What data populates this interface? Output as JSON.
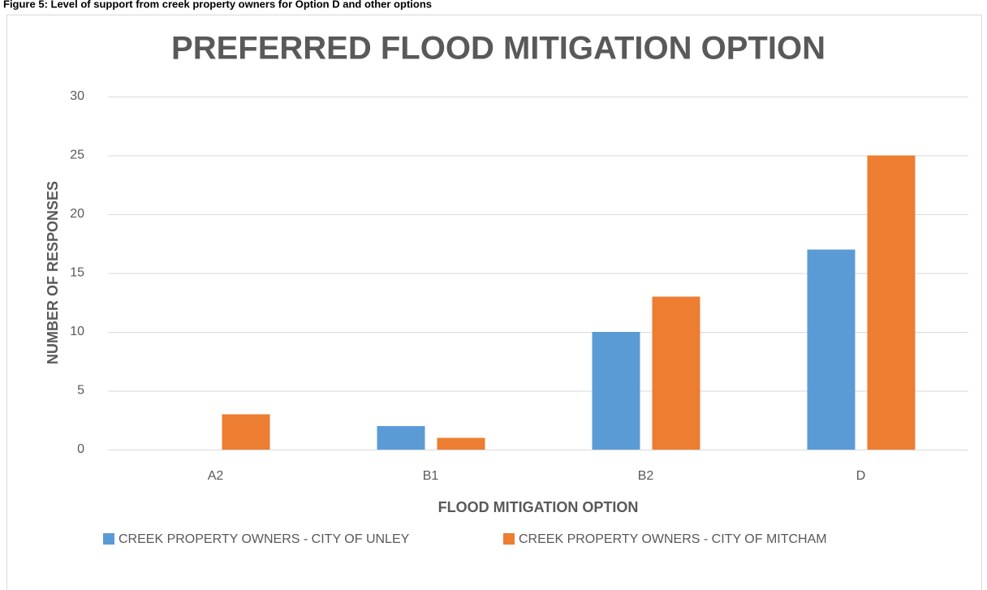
{
  "caption": "Figure 5: Level of support from creek property owners for Option D and other options",
  "chart_data": {
    "type": "bar",
    "title": "PREFERRED FLOOD MITIGATION OPTION",
    "x_label": "FLOOD MITIGATION OPTION",
    "y_label": "NUMBER OF RESPONSES",
    "categories": [
      "A2",
      "B1",
      "B2",
      "D"
    ],
    "series": [
      {
        "name": "CREEK PROPERTY OWNERS - CITY OF UNLEY",
        "color": "#5b9bd5",
        "values": [
          0,
          2,
          10,
          17
        ]
      },
      {
        "name": "CREEK PROPERTY OWNERS - CITY OF MITCHAM",
        "color": "#ed7d31",
        "values": [
          3,
          1,
          13,
          25
        ]
      }
    ],
    "ylim": [
      0,
      30
    ],
    "yticks": [
      0,
      5,
      10,
      15,
      20,
      25,
      30
    ],
    "grid": true,
    "legend": "bottom"
  }
}
